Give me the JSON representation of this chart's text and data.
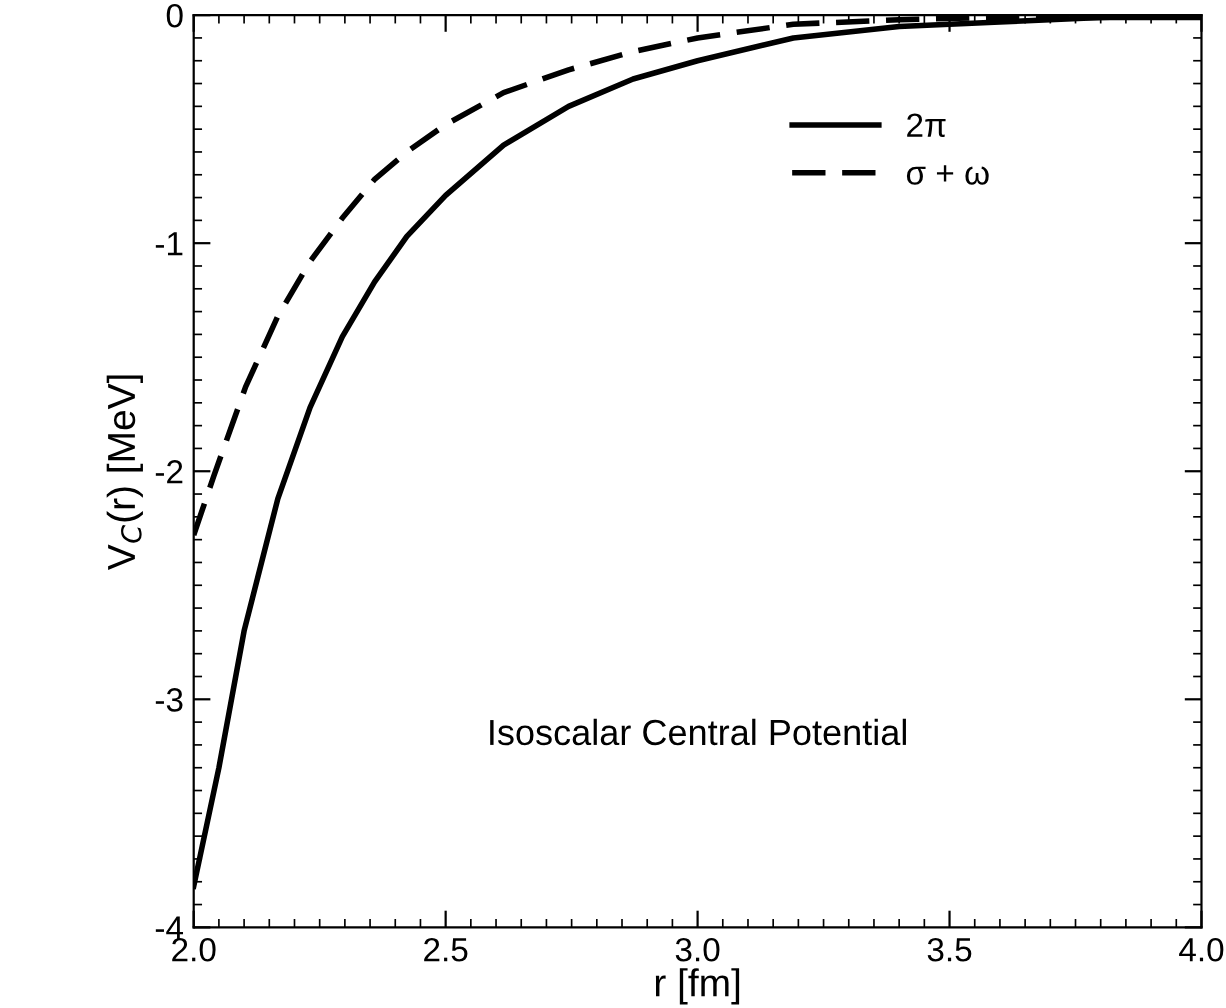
{
  "chart_data": {
    "type": "line",
    "xlabel": "r [fm]",
    "ylabel": "V$_{C}$(r) [MeV]",
    "xlim": [
      2.0,
      4.0
    ],
    "ylim": [
      -4,
      0
    ],
    "xticks": [
      {
        "value": 2.0,
        "label": "2.0"
      },
      {
        "value": 2.5,
        "label": "2.5"
      },
      {
        "value": 3.0,
        "label": "3.0"
      },
      {
        "value": 3.5,
        "label": "3.5"
      },
      {
        "value": 4.0,
        "label": "4.0"
      }
    ],
    "yticks": [
      -4,
      -3,
      -2,
      -1,
      0
    ],
    "grid": false,
    "legend": "right",
    "annotations": [
      "Isoscalar Central Potential"
    ],
    "series": [
      {
        "name": "2π",
        "color": "#000000",
        "line_style": "solid",
        "x": [
          2.0,
          2.05,
          2.1,
          2.167,
          2.231,
          2.295,
          2.359,
          2.423,
          2.5,
          2.615,
          2.744,
          2.872,
          3.0,
          3.19,
          3.4,
          3.6,
          3.8,
          4.0
        ],
        "values": [
          -3.82,
          -3.3,
          -2.7,
          -2.12,
          -1.72,
          -1.41,
          -1.17,
          -0.97,
          -0.79,
          -0.57,
          -0.4,
          -0.28,
          -0.2,
          -0.1,
          -0.05,
          -0.03,
          -0.01,
          -0.01
        ]
      },
      {
        "name": "σ + ω",
        "color": "#000000",
        "line_style": "dashed",
        "x": [
          2.0,
          2.04,
          2.103,
          2.167,
          2.231,
          2.295,
          2.359,
          2.423,
          2.5,
          2.615,
          2.744,
          2.872,
          3.0,
          3.19,
          3.4,
          3.6,
          3.8,
          4.0
        ],
        "values": [
          -2.28,
          -2.02,
          -1.63,
          -1.32,
          -1.08,
          -0.89,
          -0.72,
          -0.6,
          -0.48,
          -0.34,
          -0.24,
          -0.16,
          -0.1,
          -0.04,
          -0.02,
          -0.01,
          -0.01,
          0.0
        ]
      }
    ]
  }
}
